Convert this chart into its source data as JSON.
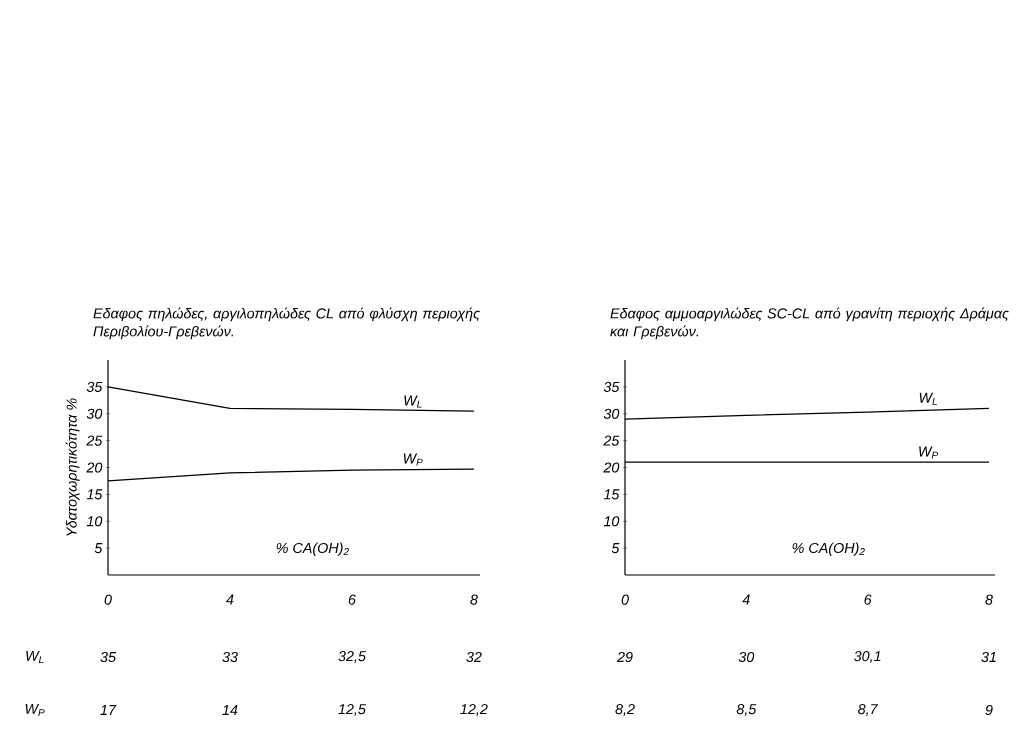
{
  "chart_data": [
    {
      "type": "line",
      "title": "Εδαφος πηλώδες, αργιλοπηλώδες CL από φλύσχη περιοχής Περιβολίου-Γρεβενών.",
      "xlabel": "% CA(OH)$_{2}$",
      "ylabel": "Υδατοχωρητικότητα %",
      "categories": [
        "0",
        "4",
        "6",
        "8"
      ],
      "series": [
        {
          "name": "W$_{L}$",
          "color": "#000000",
          "values": [
            35,
            31,
            30.8,
            30.5
          ]
        },
        {
          "name": "W$_{P}$",
          "color": "#000000",
          "values": [
            17.5,
            19,
            19.5,
            19.7
          ]
        }
      ],
      "ylim": [
        0,
        40
      ],
      "yticks": [
        5,
        10,
        15,
        20,
        25,
        30,
        35
      ],
      "annotations": [
        "W$_{L}$",
        "35",
        "33",
        "32,5",
        "32",
        "W$_{P}$",
        "17",
        "14",
        "12,5",
        "12,2"
      ]
    },
    {
      "type": "line",
      "title": "Εδαφος αμμοαργιλώδες SC-CL από γρανίτη περιοχής Δράμας και Γρεβενών.",
      "xlabel": "% CA(OH)$_{2}$",
      "categories": [
        "0",
        "4",
        "6",
        "8"
      ],
      "series": [
        {
          "name": "W$_{L}$",
          "color": "#000000",
          "values": [
            29,
            29.7,
            30.3,
            31
          ]
        },
        {
          "name": "W$_{P}$",
          "color": "#000000",
          "values": [
            21,
            21,
            21,
            21
          ]
        }
      ],
      "ylim": [
        0,
        40
      ],
      "yticks": [
        5,
        10,
        15,
        20,
        25,
        30,
        35
      ],
      "annotations": [
        "29",
        "30",
        "30,1",
        "31",
        "8,2",
        "8,5",
        "8,7",
        "9"
      ]
    }
  ]
}
